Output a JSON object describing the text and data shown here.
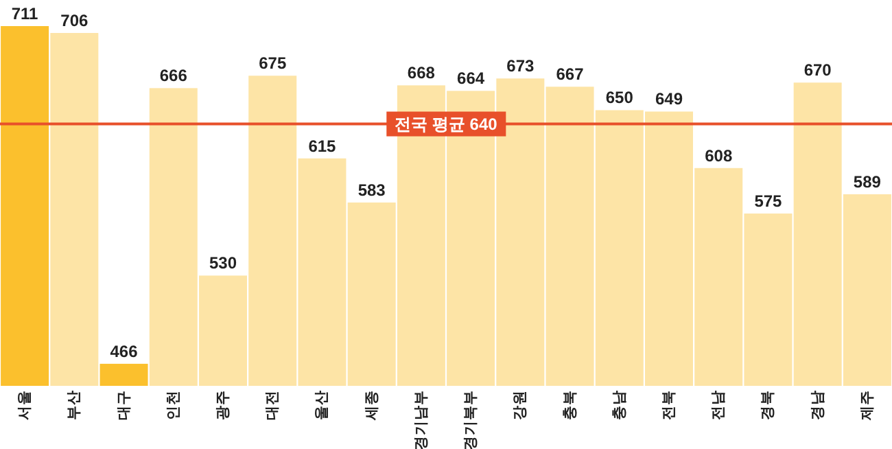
{
  "chart_data": {
    "type": "bar",
    "categories": [
      "서울",
      "부산",
      "대구",
      "인천",
      "광주",
      "대전",
      "울산",
      "세종",
      "경기남부",
      "경기북부",
      "강원",
      "충북",
      "충남",
      "전북",
      "전남",
      "경북",
      "경남",
      "제주"
    ],
    "values": [
      711,
      706,
      466,
      666,
      530,
      675,
      615,
      583,
      668,
      664,
      673,
      667,
      650,
      649,
      608,
      575,
      670,
      589
    ],
    "colors": [
      "#fbc02d",
      "#fde4a6",
      "#fbc02d",
      "#fde4a6",
      "#fde4a6",
      "#fde4a6",
      "#fde4a6",
      "#fde4a6",
      "#fde4a6",
      "#fde4a6",
      "#fde4a6",
      "#fde4a6",
      "#fde4a6",
      "#fde4a6",
      "#fde4a6",
      "#fde4a6",
      "#fde4a6",
      "#fde4a6"
    ],
    "ylim": [
      450,
      711
    ],
    "data_labels": true,
    "ref_lines": [
      {
        "axis": "y",
        "value": 640,
        "label": "전국 평균 640",
        "color": "#e8502a"
      }
    ]
  }
}
